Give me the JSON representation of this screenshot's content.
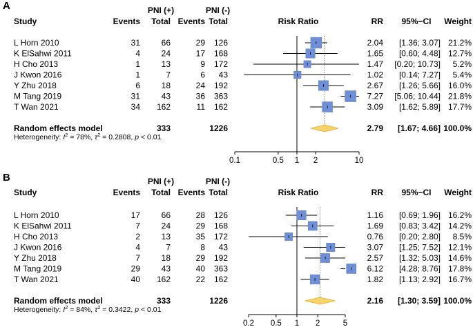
{
  "chart_data": [
    {
      "type": "forest",
      "panel": "A",
      "columns": {
        "study": "Study",
        "group_pos": "PNI (+)",
        "group_neg": "PNI (-)",
        "events": "Events",
        "total": "Total",
        "plot": "Risk Ratio",
        "rr": "RR",
        "ci": "95%−CI",
        "weight": "Weight"
      },
      "scale": "log",
      "axis_ticks": [
        0.1,
        0.5,
        1,
        2,
        10
      ],
      "axis_tick_labels": [
        "0.1",
        "0.5",
        "1",
        "2",
        "10"
      ],
      "xlim": [
        0.1,
        10
      ],
      "studies": [
        {
          "name": "L Horn 2010",
          "e1": "31",
          "n1": "66",
          "e2": "29",
          "n2": "126",
          "rr": 2.04,
          "lo": 1.36,
          "hi": 3.07,
          "rr_text": "2.04",
          "ci_text": "[1.36; 3.07]",
          "w": 21.2,
          "w_text": "21.2%"
        },
        {
          "name": "K ElSahwi 2011",
          "e1": "4",
          "n1": "24",
          "e2": "17",
          "n2": "168",
          "rr": 1.65,
          "lo": 0.6,
          "hi": 4.48,
          "rr_text": "1.65",
          "ci_text": "[0.60; 4.48]",
          "w": 12.7,
          "w_text": "12.7%"
        },
        {
          "name": "H Cho 2013",
          "e1": "1",
          "n1": "13",
          "e2": "9",
          "n2": "172",
          "rr": 1.47,
          "lo": 0.2,
          "hi": 10.73,
          "rr_text": "1.47",
          "ci_text": "[0.20; 10.73]",
          "w": 5.2,
          "w_text": "5.2%"
        },
        {
          "name": "J Kwon 2016",
          "e1": "1",
          "n1": "7",
          "e2": "6",
          "n2": "43",
          "rr": 1.02,
          "lo": 0.14,
          "hi": 7.27,
          "rr_text": "1.02",
          "ci_text": "[0.14; 7.27]",
          "w": 5.4,
          "w_text": "5.4%"
        },
        {
          "name": "Y Zhu 2018",
          "e1": "6",
          "n1": "18",
          "e2": "24",
          "n2": "192",
          "rr": 2.67,
          "lo": 1.26,
          "hi": 5.66,
          "rr_text": "2.67",
          "ci_text": "[1.26; 5.66]",
          "w": 16.0,
          "w_text": "16.0%"
        },
        {
          "name": "M Tang 2019",
          "e1": "31",
          "n1": "43",
          "e2": "36",
          "n2": "363",
          "rr": 7.27,
          "lo": 5.06,
          "hi": 10.44,
          "rr_text": "7.27",
          "ci_text": "[5.06; 10.44]",
          "w": 21.8,
          "w_text": "21.8%"
        },
        {
          "name": "T Wan 2021",
          "e1": "34",
          "n1": "162",
          "e2": "11",
          "n2": "162",
          "rr": 3.09,
          "lo": 1.62,
          "hi": 5.89,
          "rr_text": "3.09",
          "ci_text": "[1.62; 5.89]",
          "w": 17.7,
          "w_text": "17.7%"
        }
      ],
      "summary": {
        "name": "Random effects model",
        "n1": "333",
        "n2": "1226",
        "rr": 2.79,
        "lo": 1.67,
        "hi": 4.66,
        "rr_text": "2.79",
        "ci_text": "[1.67; 4.66]",
        "w_text": "100.0%"
      },
      "heterogeneity": {
        "prefix": "Heterogeneity: ",
        "i2": "78%",
        "tau2": "0.2808",
        "p": "< 0.01"
      }
    },
    {
      "type": "forest",
      "panel": "B",
      "columns": {
        "study": "Study",
        "group_pos": "PNI (+)",
        "group_neg": "PNI (-)",
        "events": "Events",
        "total": "Total",
        "plot": "Risk Ratio",
        "rr": "RR",
        "ci": "95%−CI",
        "weight": "Weight"
      },
      "scale": "log",
      "axis_ticks": [
        0.2,
        0.5,
        1,
        2,
        5
      ],
      "axis_tick_labels": [
        "0.2",
        "0.5",
        "1",
        "2",
        "5"
      ],
      "xlim": [
        0.2,
        5
      ],
      "studies": [
        {
          "name": "L Horn 2010",
          "e1": "17",
          "n1": "66",
          "e2": "28",
          "n2": "126",
          "rr": 1.16,
          "lo": 0.69,
          "hi": 1.96,
          "rr_text": "1.16",
          "ci_text": "[0.69; 1.96]",
          "w": 16.2,
          "w_text": "16.2%"
        },
        {
          "name": "K ElSahwi 2011",
          "e1": "7",
          "n1": "24",
          "e2": "29",
          "n2": "168",
          "rr": 1.69,
          "lo": 0.83,
          "hi": 3.42,
          "rr_text": "1.69",
          "ci_text": "[0.83; 3.42]",
          "w": 14.2,
          "w_text": "14.2%"
        },
        {
          "name": "H Cho 2013",
          "e1": "2",
          "n1": "13",
          "e2": "35",
          "n2": "172",
          "rr": 0.76,
          "lo": 0.2,
          "hi": 2.8,
          "rr_text": "0.76",
          "ci_text": "[0.20; 2.80]",
          "w": 8.5,
          "w_text": "8.5%"
        },
        {
          "name": "J Kwon 2016",
          "e1": "4",
          "n1": "7",
          "e2": "8",
          "n2": "43",
          "rr": 3.07,
          "lo": 1.25,
          "hi": 7.52,
          "rr_text": "3.07",
          "ci_text": "[1.25; 7.52]",
          "w": 12.1,
          "w_text": "12.1%"
        },
        {
          "name": "Y Zhu 2018",
          "e1": "7",
          "n1": "18",
          "e2": "29",
          "n2": "192",
          "rr": 2.57,
          "lo": 1.32,
          "hi": 5.03,
          "rr_text": "2.57",
          "ci_text": "[1.32; 5.03]",
          "w": 14.6,
          "w_text": "14.6%"
        },
        {
          "name": "M Tang 2019",
          "e1": "29",
          "n1": "43",
          "e2": "40",
          "n2": "363",
          "rr": 6.12,
          "lo": 4.28,
          "hi": 8.76,
          "rr_text": "6.12",
          "ci_text": "[4.28; 8.76]",
          "w": 17.8,
          "w_text": "17.8%"
        },
        {
          "name": "T Wan 2021",
          "e1": "40",
          "n1": "162",
          "e2": "22",
          "n2": "162",
          "rr": 1.82,
          "lo": 1.13,
          "hi": 2.92,
          "rr_text": "1.82",
          "ci_text": "[1.13; 2.92]",
          "w": 16.7,
          "w_text": "16.7%"
        }
      ],
      "summary": {
        "name": "Random effects model",
        "n1": "333",
        "n2": "1226",
        "rr": 2.16,
        "lo": 1.3,
        "hi": 3.59,
        "rr_text": "2.16",
        "ci_text": "[1.30; 3.59]",
        "w_text": "100.0%"
      },
      "heterogeneity": {
        "prefix": "Heterogeneity: ",
        "i2": "84%",
        "tau2": "0.3422",
        "p": "< 0.01"
      }
    }
  ],
  "colors": {
    "square": "#6f8fd6",
    "square_stroke": "#5a7bc4",
    "diamond": "#f7d36b",
    "diamond_stroke": "#e0ac2e",
    "line": "#000000",
    "dotted": "#666666"
  }
}
